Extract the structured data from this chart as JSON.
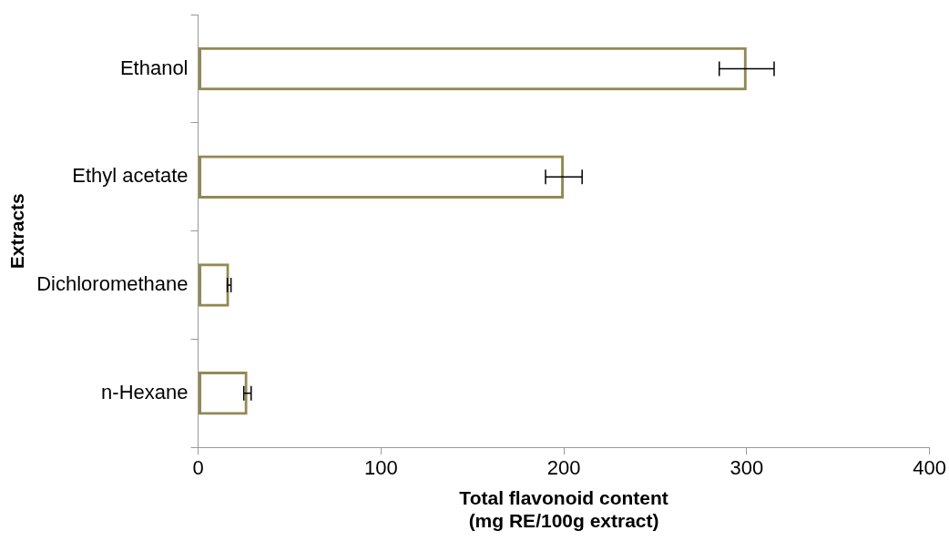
{
  "chart_data": {
    "type": "bar",
    "orientation": "horizontal",
    "xlabel": "Total flavonoid content\n(mg RE/100g extract)",
    "ylabel": "Extracts",
    "categories": [
      "Ethanol",
      "Ethyl acetate",
      "Dichloromethane",
      "n-Hexane"
    ],
    "values": [
      300,
      200,
      17,
      27
    ],
    "errors": [
      15,
      10,
      1,
      2
    ],
    "color": "#938953",
    "xlim": [
      0,
      400
    ],
    "xticks": [
      0,
      100,
      200,
      300,
      400
    ],
    "grid": false,
    "legend": false
  }
}
